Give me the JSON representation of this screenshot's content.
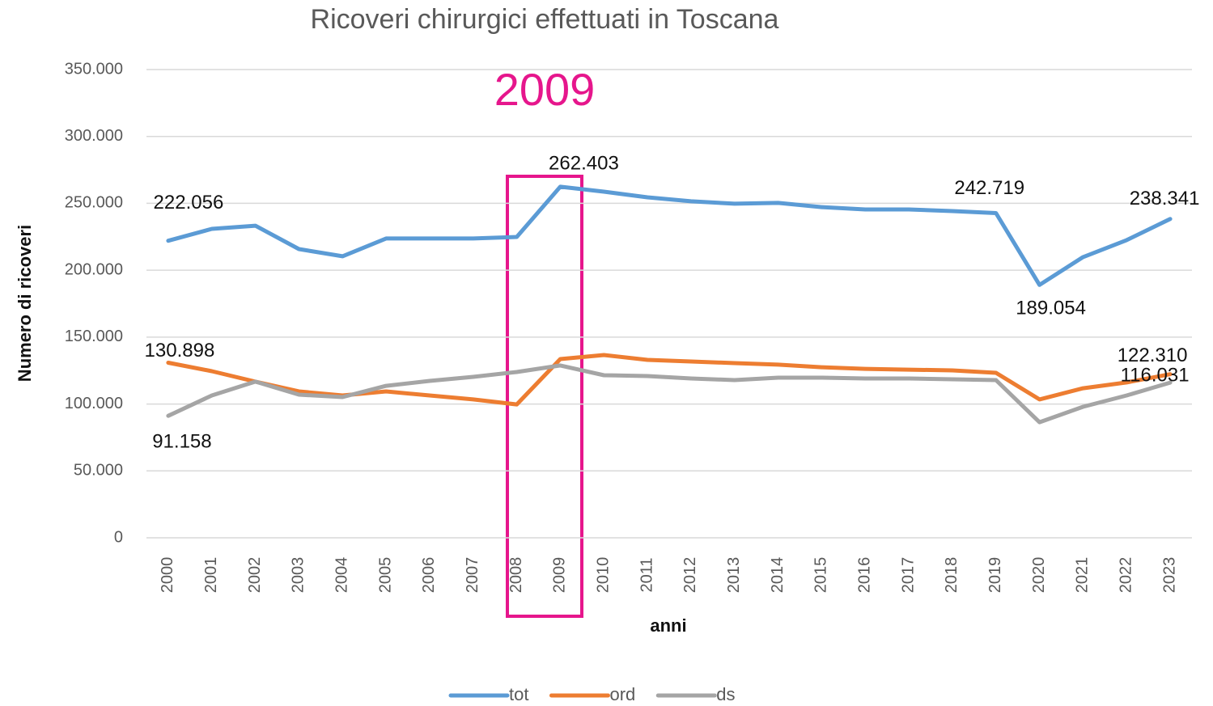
{
  "chart_data": {
    "type": "line",
    "title": "Ricoveri chirurgici effettuati in Toscana",
    "annotation": "2009",
    "x_label": "anni",
    "y_label": "Numero di ricoveri",
    "categories": [
      "2000",
      "2001",
      "2002",
      "2003",
      "2004",
      "2005",
      "2006",
      "2007",
      "2008",
      "2009",
      "2010",
      "2011",
      "2012",
      "2013",
      "2014",
      "2015",
      "2016",
      "2017",
      "2018",
      "2019",
      "2020",
      "2021",
      "2022",
      "2023"
    ],
    "ylim": [
      0,
      350000
    ],
    "yticks": [
      0,
      {
        "value": 50000,
        "label": "50.000"
      },
      {
        "value": 100000,
        "label": "100.000"
      },
      {
        "value": 150000,
        "label": "150.000"
      },
      {
        "value": 200000,
        "label": "200.000"
      },
      {
        "value": 250000,
        "label": "250.000"
      },
      {
        "value": 300000,
        "label": "300.000"
      },
      {
        "value": 350000,
        "label": "350.000"
      }
    ],
    "grid": true,
    "legend": "bottom",
    "series": [
      {
        "name": "tot",
        "color": "#5b9bd5",
        "values": [
          222056,
          230900,
          233300,
          215800,
          210400,
          223700,
          223700,
          223700,
          224900,
          262403,
          258700,
          254500,
          251500,
          249700,
          250300,
          247200,
          245400,
          245400,
          244200,
          242719,
          189054,
          209800,
          222500,
          238341
        ],
        "value_labels": [
          "222.056",
          null,
          null,
          null,
          null,
          null,
          null,
          null,
          null,
          "262.403",
          null,
          null,
          null,
          null,
          null,
          null,
          null,
          null,
          null,
          "242.719",
          "189.054",
          null,
          null,
          "238.341"
        ]
      },
      {
        "name": "ord",
        "color": "#ed7d31",
        "values": [
          130898,
          124500,
          116700,
          109400,
          106400,
          109400,
          106400,
          103400,
          99700,
          133600,
          136600,
          133000,
          131800,
          130600,
          129400,
          127500,
          126300,
          125700,
          125100,
          123300,
          103400,
          111800,
          116100,
          122310
        ],
        "value_labels": [
          "130.898",
          null,
          null,
          null,
          null,
          null,
          null,
          null,
          null,
          null,
          null,
          null,
          null,
          null,
          null,
          null,
          null,
          null,
          null,
          null,
          null,
          null,
          null,
          "122.310"
        ]
      },
      {
        "name": "ds",
        "color": "#a5a5a5",
        "values": [
          91158,
          106400,
          116700,
          107000,
          105200,
          113600,
          117300,
          120300,
          123900,
          128800,
          121500,
          120900,
          119100,
          117900,
          119700,
          119700,
          119100,
          119100,
          118500,
          117900,
          86400,
          97900,
          106400,
          116031
        ],
        "value_labels": [
          "91.158",
          null,
          null,
          null,
          null,
          null,
          null,
          null,
          null,
          null,
          null,
          null,
          null,
          null,
          null,
          null,
          null,
          null,
          null,
          null,
          null,
          null,
          null,
          "116.031"
        ]
      }
    ]
  }
}
